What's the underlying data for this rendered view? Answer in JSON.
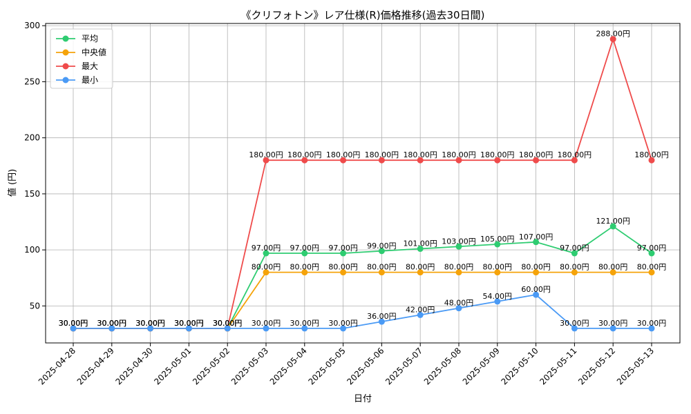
{
  "chart_data": {
    "type": "line",
    "title": "《クリフォトン》レア仕様(R)価格推移(過去30日間)",
    "xlabel": "日付",
    "ylabel": "値 (円)",
    "ylim": [
      17,
      302
    ],
    "yticks": [
      50,
      100,
      150,
      200,
      250,
      300
    ],
    "grid": true,
    "legend_position": "top-left",
    "categories": [
      "2025-04-28",
      "2025-04-29",
      "2025-04-30",
      "2025-05-01",
      "2025-05-02",
      "2025-05-03",
      "2025-05-04",
      "2025-05-05",
      "2025-05-06",
      "2025-05-07",
      "2025-05-08",
      "2025-05-09",
      "2025-05-10",
      "2025-05-11",
      "2025-05-12",
      "2025-05-13"
    ],
    "series": [
      {
        "name": "平均",
        "color": "#2ecc71",
        "values": [
          30,
          30,
          30,
          30,
          30,
          97,
          97,
          97,
          99,
          101,
          103,
          105,
          107,
          97,
          121,
          97
        ]
      },
      {
        "name": "中央値",
        "color": "#f5a30a",
        "values": [
          30,
          30,
          30,
          30,
          30,
          80,
          80,
          80,
          80,
          80,
          80,
          80,
          80,
          80,
          80,
          80
        ]
      },
      {
        "name": "最大",
        "color": "#ef4b4b",
        "values": [
          30,
          30,
          30,
          30,
          30,
          180,
          180,
          180,
          180,
          180,
          180,
          180,
          180,
          180,
          288,
          180
        ]
      },
      {
        "name": "最小",
        "color": "#4a9af5",
        "values": [
          30,
          30,
          30,
          30,
          30,
          30,
          30,
          30,
          36,
          42,
          48,
          54,
          60,
          30,
          30,
          30
        ]
      }
    ],
    "label_suffix": "円",
    "label_decimals": 2
  }
}
